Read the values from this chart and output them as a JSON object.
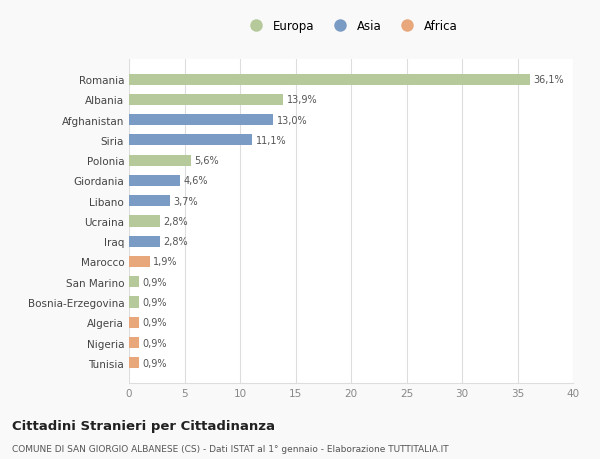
{
  "categories": [
    "Tunisia",
    "Nigeria",
    "Algeria",
    "Bosnia-Erzegovina",
    "San Marino",
    "Marocco",
    "Iraq",
    "Ucraina",
    "Libano",
    "Giordania",
    "Polonia",
    "Siria",
    "Afghanistan",
    "Albania",
    "Romania"
  ],
  "values": [
    0.9,
    0.9,
    0.9,
    0.9,
    0.9,
    1.9,
    2.8,
    2.8,
    3.7,
    4.6,
    5.6,
    11.1,
    13.0,
    13.9,
    36.1
  ],
  "colors": [
    "#e8a87c",
    "#e8a87c",
    "#e8a87c",
    "#b5c99a",
    "#b5c99a",
    "#e8a87c",
    "#7a9bc4",
    "#b5c99a",
    "#7a9bc4",
    "#7a9bc4",
    "#b5c99a",
    "#7a9bc4",
    "#7a9bc4",
    "#b5c99a",
    "#b5c99a"
  ],
  "labels": [
    "0,9%",
    "0,9%",
    "0,9%",
    "0,9%",
    "0,9%",
    "1,9%",
    "2,8%",
    "2,8%",
    "3,7%",
    "4,6%",
    "5,6%",
    "11,1%",
    "13,0%",
    "13,9%",
    "36,1%"
  ],
  "legend": [
    {
      "label": "Europa",
      "color": "#b5c99a"
    },
    {
      "label": "Asia",
      "color": "#7a9bc4"
    },
    {
      "label": "Africa",
      "color": "#e8a87c"
    }
  ],
  "xlim": [
    0,
    40
  ],
  "xticks": [
    0,
    5,
    10,
    15,
    20,
    25,
    30,
    35,
    40
  ],
  "title": "Cittadini Stranieri per Cittadinanza",
  "subtitle": "COMUNE DI SAN GIORGIO ALBANESE (CS) - Dati ISTAT al 1° gennaio - Elaborazione TUTTITALIA.IT",
  "background_color": "#f9f9f9",
  "bar_background": "#ffffff",
  "grid_color": "#dddddd"
}
